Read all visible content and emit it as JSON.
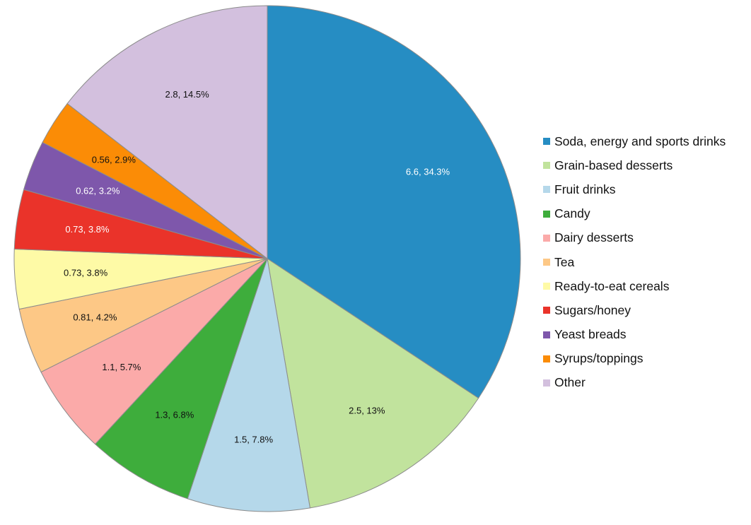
{
  "chart_data": {
    "type": "pie",
    "title": "",
    "legend_position": "right",
    "slices": [
      {
        "name": "Soda, energy and sports drinks",
        "value": 6.6,
        "percent": 34.3,
        "label": "6.6, 34.3%",
        "color": "#268dc3",
        "label_color": "#ffffff"
      },
      {
        "name": "Grain-based desserts",
        "value": 2.5,
        "percent": 13.0,
        "label": "2.5, 13%",
        "color": "#c1e39d",
        "label_color": "#111111"
      },
      {
        "name": "Fruit drinks",
        "value": 1.5,
        "percent": 7.8,
        "label": "1.5, 7.8%",
        "color": "#b5d8ea",
        "label_color": "#111111"
      },
      {
        "name": "Candy",
        "value": 1.3,
        "percent": 6.8,
        "label": "1.3, 6.8%",
        "color": "#3ead3c",
        "label_color": "#111111"
      },
      {
        "name": "Dairy desserts",
        "value": 1.1,
        "percent": 5.7,
        "label": "1.1, 5.7%",
        "color": "#fbaaa9",
        "label_color": "#111111"
      },
      {
        "name": "Tea",
        "value": 0.81,
        "percent": 4.2,
        "label": "0.81, 4.2%",
        "color": "#fdc886",
        "label_color": "#111111"
      },
      {
        "name": "Ready-to-eat cereals",
        "value": 0.73,
        "percent": 3.8,
        "label": "0.73, 3.8%",
        "color": "#fefaa6",
        "label_color": "#111111"
      },
      {
        "name": "Sugars/honey",
        "value": 0.73,
        "percent": 3.8,
        "label": "0.73, 3.8%",
        "color": "#ea332a",
        "label_color": "#ffffff"
      },
      {
        "name": "Yeast breads",
        "value": 0.62,
        "percent": 3.2,
        "label": "0.62, 3.2%",
        "color": "#7e57ab",
        "label_color": "#ffffff"
      },
      {
        "name": "Syrups/toppings",
        "value": 0.56,
        "percent": 2.9,
        "label": "0.56, 2.9%",
        "color": "#fb8c06",
        "label_color": "#111111"
      },
      {
        "name": "Other",
        "value": 2.8,
        "percent": 14.5,
        "label": "2.8, 14.5%",
        "color": "#d3c0de",
        "label_color": "#111111"
      }
    ]
  }
}
